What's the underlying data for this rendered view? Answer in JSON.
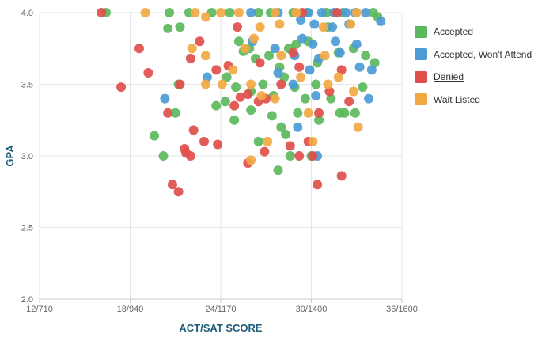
{
  "chart_data": {
    "type": "scatter",
    "title": "",
    "xlabel": "ACT/SAT SCORE",
    "ylabel": "GPA",
    "x_ticks": [
      "12/710",
      "18/940",
      "24/1170",
      "30/1400",
      "36/1600"
    ],
    "x_tick_values": [
      12,
      18,
      24,
      30,
      36
    ],
    "xlim": [
      12,
      36
    ],
    "y_ticks": [
      "2.0",
      "2.5",
      "3.0",
      "3.5",
      "4.0"
    ],
    "y_tick_values": [
      2.0,
      2.5,
      3.0,
      3.5,
      4.0
    ],
    "ylim": [
      2.0,
      4.0
    ],
    "grid": true,
    "legend_position": "right",
    "series": [
      {
        "name": "Accepted",
        "color": "#5cb85c",
        "points": [
          [
            16.4,
            4.0
          ],
          [
            20.6,
            4.0
          ],
          [
            21.9,
            4.0
          ],
          [
            23.4,
            4.0
          ],
          [
            24.6,
            4.0
          ],
          [
            26.5,
            4.0
          ],
          [
            27.3,
            4.0
          ],
          [
            28.8,
            4.0
          ],
          [
            29.7,
            4.0
          ],
          [
            31.0,
            4.0
          ],
          [
            32.1,
            4.0
          ],
          [
            34.1,
            4.0
          ],
          [
            34.4,
            3.97
          ],
          [
            20.5,
            3.89
          ],
          [
            21.3,
            3.9
          ],
          [
            25.2,
            3.8
          ],
          [
            25.5,
            3.73
          ],
          [
            25.9,
            3.75
          ],
          [
            26.3,
            3.68
          ],
          [
            27.2,
            3.7
          ],
          [
            27.9,
            3.62
          ],
          [
            28.5,
            3.75
          ],
          [
            29.0,
            3.78
          ],
          [
            29.8,
            3.8
          ],
          [
            30.4,
            3.65
          ],
          [
            31.1,
            3.9
          ],
          [
            31.8,
            3.72
          ],
          [
            32.8,
            3.75
          ],
          [
            33.6,
            3.7
          ],
          [
            34.2,
            3.65
          ],
          [
            21.2,
            3.5
          ],
          [
            24.4,
            3.55
          ],
          [
            25.0,
            3.48
          ],
          [
            26.0,
            3.45
          ],
          [
            26.8,
            3.5
          ],
          [
            27.5,
            3.42
          ],
          [
            28.2,
            3.55
          ],
          [
            28.9,
            3.48
          ],
          [
            29.6,
            3.4
          ],
          [
            30.3,
            3.5
          ],
          [
            31.3,
            3.4
          ],
          [
            32.2,
            3.3
          ],
          [
            33.4,
            3.48
          ],
          [
            23.7,
            3.35
          ],
          [
            24.3,
            3.38
          ],
          [
            24.9,
            3.25
          ],
          [
            26.0,
            3.32
          ],
          [
            27.4,
            3.28
          ],
          [
            28.0,
            3.2
          ],
          [
            28.3,
            3.15
          ],
          [
            29.1,
            3.3
          ],
          [
            30.5,
            3.25
          ],
          [
            31.9,
            3.3
          ],
          [
            32.9,
            3.3
          ],
          [
            21.0,
            3.3
          ],
          [
            19.6,
            3.14
          ],
          [
            20.2,
            3.0
          ],
          [
            26.5,
            3.1
          ],
          [
            28.6,
            3.0
          ],
          [
            30.0,
            3.0
          ],
          [
            27.8,
            2.9
          ]
        ]
      },
      {
        "name": "Accepted, Won't Attend",
        "color": "#4b9bd5",
        "points": [
          [
            26.0,
            4.0
          ],
          [
            27.8,
            4.0
          ],
          [
            29.8,
            4.0
          ],
          [
            30.7,
            4.0
          ],
          [
            31.5,
            4.0
          ],
          [
            32.3,
            4.0
          ],
          [
            32.9,
            4.0
          ],
          [
            33.6,
            4.0
          ],
          [
            34.6,
            3.94
          ],
          [
            29.3,
            3.95
          ],
          [
            30.2,
            3.92
          ],
          [
            31.4,
            3.9
          ],
          [
            32.5,
            3.92
          ],
          [
            26.1,
            3.8
          ],
          [
            27.6,
            3.75
          ],
          [
            29.4,
            3.82
          ],
          [
            30.1,
            3.78
          ],
          [
            31.6,
            3.8
          ],
          [
            33.0,
            3.78
          ],
          [
            28.9,
            3.7
          ],
          [
            30.5,
            3.68
          ],
          [
            31.9,
            3.72
          ],
          [
            33.2,
            3.62
          ],
          [
            27.8,
            3.58
          ],
          [
            29.9,
            3.6
          ],
          [
            20.3,
            3.4
          ],
          [
            23.1,
            3.55
          ],
          [
            28.8,
            3.5
          ],
          [
            30.3,
            3.42
          ],
          [
            33.8,
            3.4
          ],
          [
            29.1,
            3.2
          ],
          [
            30.4,
            3.0
          ],
          [
            34.0,
            3.6
          ]
        ]
      },
      {
        "name": "Denied",
        "color": "#e04f4b",
        "points": [
          [
            16.1,
            4.0
          ],
          [
            29.4,
            4.0
          ],
          [
            31.7,
            4.0
          ],
          [
            18.6,
            3.75
          ],
          [
            17.4,
            3.48
          ],
          [
            19.2,
            3.58
          ],
          [
            21.3,
            3.5
          ],
          [
            22.0,
            3.68
          ],
          [
            22.6,
            3.8
          ],
          [
            23.7,
            3.6
          ],
          [
            24.5,
            3.63
          ],
          [
            25.1,
            3.9
          ],
          [
            26.6,
            3.65
          ],
          [
            28.8,
            3.72
          ],
          [
            29.2,
            3.62
          ],
          [
            25.3,
            3.41
          ],
          [
            25.8,
            3.43
          ],
          [
            24.9,
            3.35
          ],
          [
            26.5,
            3.38
          ],
          [
            27.0,
            3.4
          ],
          [
            28.0,
            3.5
          ],
          [
            30.5,
            3.3
          ],
          [
            31.2,
            3.45
          ],
          [
            32.0,
            3.6
          ],
          [
            32.5,
            3.38
          ],
          [
            20.5,
            3.3
          ],
          [
            21.6,
            3.05
          ],
          [
            22.2,
            3.18
          ],
          [
            22.9,
            3.1
          ],
          [
            23.8,
            3.08
          ],
          [
            25.8,
            2.95
          ],
          [
            26.9,
            3.03
          ],
          [
            28.6,
            3.07
          ],
          [
            29.2,
            3.0
          ],
          [
            29.8,
            3.1
          ],
          [
            30.1,
            3.0
          ],
          [
            32.0,
            2.86
          ],
          [
            20.8,
            2.8
          ],
          [
            21.2,
            2.75
          ],
          [
            21.7,
            3.02
          ],
          [
            22.0,
            3.0
          ],
          [
            30.4,
            2.8
          ]
        ]
      },
      {
        "name": "Wait Listed",
        "color": "#f2a944",
        "points": [
          [
            19.0,
            4.0
          ],
          [
            22.3,
            4.0
          ],
          [
            23.0,
            3.97
          ],
          [
            24.0,
            4.0
          ],
          [
            25.2,
            4.0
          ],
          [
            27.6,
            4.0
          ],
          [
            29.0,
            4.0
          ],
          [
            33.0,
            4.0
          ],
          [
            26.6,
            3.9
          ],
          [
            27.9,
            3.92
          ],
          [
            30.8,
            3.9
          ],
          [
            32.6,
            3.92
          ],
          [
            22.1,
            3.75
          ],
          [
            23.0,
            3.7
          ],
          [
            25.6,
            3.75
          ],
          [
            26.2,
            3.82
          ],
          [
            28.0,
            3.7
          ],
          [
            29.3,
            3.55
          ],
          [
            30.9,
            3.7
          ],
          [
            31.8,
            3.55
          ],
          [
            23.0,
            3.5
          ],
          [
            24.1,
            3.5
          ],
          [
            24.8,
            3.6
          ],
          [
            26.0,
            3.5
          ],
          [
            26.7,
            3.42
          ],
          [
            27.6,
            3.4
          ],
          [
            29.8,
            3.3
          ],
          [
            31.1,
            3.5
          ],
          [
            32.8,
            3.45
          ],
          [
            26.0,
            2.97
          ],
          [
            27.1,
            3.1
          ],
          [
            30.1,
            3.1
          ],
          [
            33.1,
            3.2
          ]
        ]
      }
    ]
  }
}
